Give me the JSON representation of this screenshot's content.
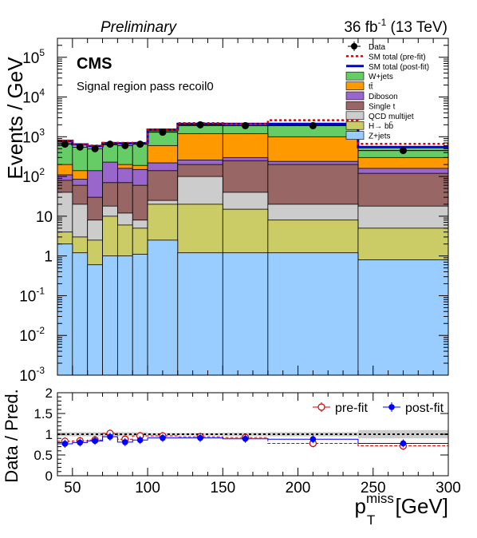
{
  "header": {
    "left": "Preliminary",
    "right_lumi": "36 fb",
    "right_exp": "-1",
    "right_energy": " (13 TeV)"
  },
  "labels": {
    "cms": "CMS",
    "region": "Signal region pass recoil0",
    "ylabel_top": "Events / GeV",
    "ylabel_bottom": "Data / Pred.",
    "xlabel_main": "p",
    "xlabel_sub": "T",
    "xlabel_sup": "miss",
    "xlabel_unit": " [GeV]"
  },
  "ratio_legend": [
    {
      "name": "pre-fit",
      "color": "#cc0000",
      "marker": "open-circle"
    },
    {
      "name": "post-fit",
      "color": "#0000ff",
      "marker": "filled-circle"
    }
  ],
  "chart_data": [
    {
      "type": "area",
      "subtype": "stacked-histogram",
      "xlim": [
        40,
        300
      ],
      "ylim": [
        0.001,
        300000
      ],
      "log_y": true,
      "legend_placement": "top-right",
      "bin_edges": [
        40,
        50,
        60,
        70,
        80,
        90,
        100,
        120,
        150,
        180,
        240,
        300
      ],
      "y_ticks": [
        {
          "value": 0.001,
          "label": "10",
          "exp": "-3"
        },
        {
          "value": 0.01,
          "label": "10",
          "exp": "-2"
        },
        {
          "value": 0.1,
          "label": "10",
          "exp": "-1"
        },
        {
          "value": 1,
          "label": "1",
          "exp": ""
        },
        {
          "value": 10,
          "label": "10",
          "exp": ""
        },
        {
          "value": 100,
          "label": "10",
          "exp": "2"
        },
        {
          "value": 1000,
          "label": "10",
          "exp": "3"
        },
        {
          "value": 10000,
          "label": "10",
          "exp": "4"
        },
        {
          "value": 100000,
          "label": "10",
          "exp": "5"
        }
      ],
      "x_ticks": [
        50,
        100,
        150,
        200,
        250,
        300
      ],
      "legend": [
        {
          "name": "Data",
          "kind": "data",
          "color": "#000000"
        },
        {
          "name": "SM total (pre-fit)",
          "kind": "dotted-line",
          "color": "#dd0000"
        },
        {
          "name": "SM total (post-fit)",
          "kind": "line",
          "color": "#0000dd"
        },
        {
          "name": "W+jets",
          "kind": "fill",
          "color": "#66cc66"
        },
        {
          "name": "tt̄",
          "kind": "fill",
          "color": "#ff9900"
        },
        {
          "name": "Diboson",
          "kind": "fill",
          "color": "#9966cc"
        },
        {
          "name": "Single t",
          "kind": "fill",
          "color": "#996666"
        },
        {
          "name": "QCD multijet",
          "kind": "fill",
          "color": "#cccccc"
        },
        {
          "name": "H→ bb̄",
          "kind": "fill",
          "color": "#cccc66"
        },
        {
          "name": "Z+jets",
          "kind": "fill",
          "color": "#99ccff"
        }
      ],
      "stack_tops": [
        {
          "name": "Z+jets",
          "color": "#99ccff",
          "values": [
            2.0,
            1.2,
            0.6,
            1.0,
            1.0,
            1.1,
            2.5,
            1.2,
            1.2,
            1.2,
            0.8
          ]
        },
        {
          "name": "H→ bb̄",
          "color": "#cccc66",
          "values": [
            4.0,
            3.0,
            2.5,
            10,
            6,
            5,
            20,
            20,
            15,
            8,
            5
          ]
        },
        {
          "name": "QCD multijet",
          "color": "#cccccc",
          "values": [
            40,
            20,
            8,
            18,
            12,
            8,
            25,
            100,
            40,
            20,
            18
          ]
        },
        {
          "name": "Single t",
          "color": "#996666",
          "values": [
            80,
            60,
            30,
            70,
            70,
            60,
            140,
            200,
            250,
            200,
            120
          ]
        },
        {
          "name": "Diboson",
          "color": "#9966cc",
          "values": [
            110,
            85,
            140,
            230,
            160,
            150,
            220,
            260,
            300,
            240,
            160
          ]
        },
        {
          "name": "tt̄",
          "color": "#ff9900",
          "values": [
            200,
            140,
            130,
            180,
            200,
            190,
            600,
            1200,
            1200,
            1000,
            300
          ]
        },
        {
          "name": "W+jets",
          "color": "#66cc66",
          "values": [
            700,
            550,
            500,
            620,
            600,
            650,
            1400,
            1900,
            1900,
            1950,
            560
          ]
        }
      ],
      "sm_total_prefit": [
        800,
        650,
        600,
        700,
        700,
        700,
        1500,
        2200,
        2100,
        2600,
        660
      ],
      "sm_total_postfit": [
        780,
        640,
        580,
        690,
        680,
        690,
        1500,
        2100,
        2100,
        2100,
        550
      ],
      "data": {
        "x": [
          45,
          55,
          65,
          75,
          85,
          95,
          110,
          135,
          165,
          210,
          270
        ],
        "y": [
          650,
          550,
          500,
          650,
          600,
          650,
          1300,
          2000,
          1900,
          1900,
          450
        ]
      }
    },
    {
      "type": "scatter",
      "subtype": "ratio",
      "xlim": [
        40,
        300
      ],
      "ylim": [
        0,
        2
      ],
      "y_ticks": [
        0,
        0.5,
        1,
        1.5,
        2
      ],
      "y_tick_labels": [
        "0",
        "0.5",
        "1",
        "1.5",
        "2"
      ],
      "x_ticks": [
        50,
        100,
        150,
        200,
        250,
        300
      ],
      "reference_line": 1,
      "bin_edges": [
        40,
        50,
        60,
        70,
        80,
        90,
        100,
        120,
        150,
        180,
        240,
        300
      ],
      "uncertainty_band": [
        0.05,
        0.05,
        0.05,
        0.05,
        0.05,
        0.05,
        0.03,
        0.03,
        0.04,
        0.05,
        0.1
      ],
      "series": [
        {
          "name": "pre-fit",
          "x": [
            45,
            55,
            65,
            75,
            85,
            95,
            110,
            135,
            165,
            210,
            270
          ],
          "values": [
            0.83,
            0.84,
            0.86,
            1.02,
            0.88,
            0.96,
            0.96,
            0.94,
            0.92,
            0.78,
            0.72
          ]
        },
        {
          "name": "post-fit",
          "x": [
            45,
            55,
            65,
            75,
            85,
            95,
            110,
            135,
            165,
            210,
            270
          ],
          "values": [
            0.77,
            0.8,
            0.84,
            0.94,
            0.81,
            0.86,
            0.91,
            0.91,
            0.89,
            0.88,
            0.78
          ]
        }
      ]
    }
  ]
}
